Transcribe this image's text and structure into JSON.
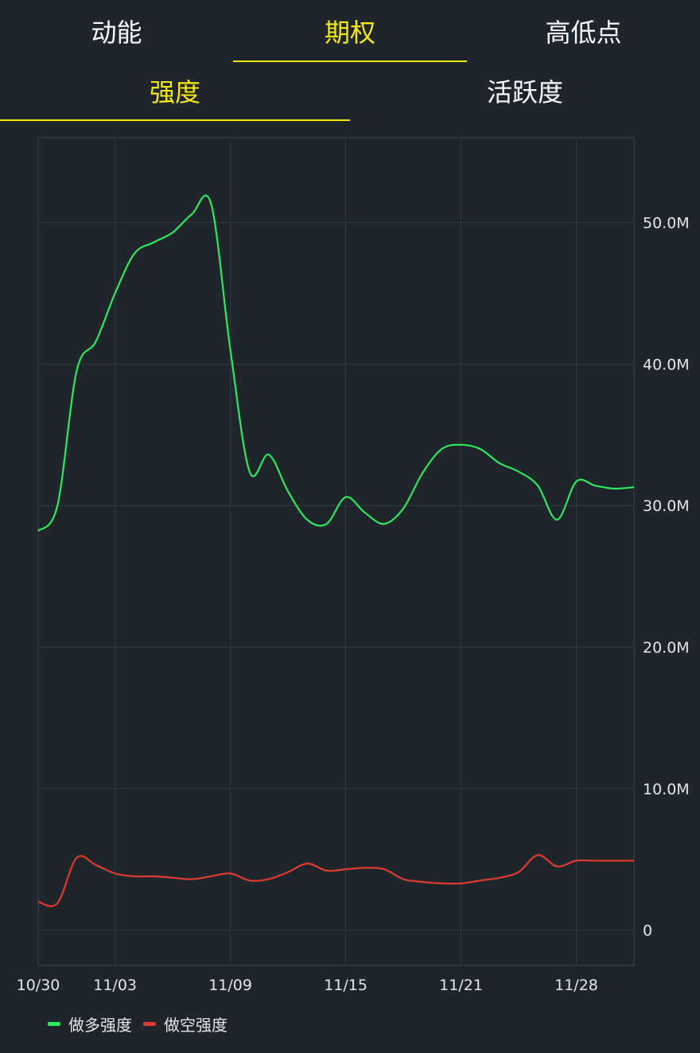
{
  "tabs": [
    {
      "label": "动能",
      "active": false
    },
    {
      "label": "期权",
      "active": true
    },
    {
      "label": "高低点",
      "active": false
    }
  ],
  "subtabs": [
    {
      "label": "强度",
      "active": true
    },
    {
      "label": "活跃度",
      "active": false
    }
  ],
  "colors": {
    "background": "#1e262b",
    "accent": "#f5e90f",
    "long": "#2ee85f",
    "short": "#e03a2e",
    "grid": "#2f3b3f"
  },
  "chart_data": {
    "type": "line",
    "y_unit": "M",
    "ylim": [
      -2.5,
      56
    ],
    "y_ticks": [
      0,
      10,
      20,
      30,
      40,
      50
    ],
    "y_tick_labels": [
      "0",
      "10.0M",
      "20.0M",
      "30.0M",
      "40.0M",
      "50.0M"
    ],
    "x_tick_labels": [
      "10/30",
      "11/03",
      "11/09",
      "11/15",
      "11/21",
      "11/28"
    ],
    "grid": true,
    "legend_position": "bottom-left",
    "x": [
      "10/30",
      "10/31",
      "11/01",
      "11/02",
      "11/03",
      "11/04",
      "11/05",
      "11/06",
      "11/07",
      "11/08",
      "11/09",
      "11/10",
      "11/11",
      "11/12",
      "11/13",
      "11/14",
      "11/15",
      "11/16",
      "11/17",
      "11/18",
      "11/19",
      "11/20",
      "11/21",
      "11/22",
      "11/23",
      "11/24",
      "11/26",
      "11/27",
      "11/28",
      "11/29",
      "11/30",
      "12/01"
    ],
    "series": [
      {
        "name": "做多强度",
        "color": "#2ee85f",
        "values": [
          28.2,
          30.0,
          39.5,
          41.6,
          45.0,
          47.8,
          48.6,
          49.3,
          50.6,
          51.3,
          41.0,
          32.4,
          33.6,
          31.0,
          29.0,
          28.7,
          30.6,
          29.5,
          28.7,
          29.8,
          32.3,
          34.0,
          34.3,
          34.0,
          33.0,
          32.4,
          31.4,
          29.0,
          31.7,
          31.4,
          31.2,
          31.3
        ],
        "values_note": ""
      },
      {
        "name": "做空强度",
        "color": "#e03a2e",
        "values": [
          2.0,
          1.9,
          5.1,
          4.6,
          4.0,
          3.8,
          3.8,
          3.7,
          3.6,
          3.8,
          4.0,
          3.5,
          3.6,
          4.1,
          4.7,
          4.2,
          4.3,
          4.4,
          4.3,
          3.6,
          3.4,
          3.3,
          3.3,
          3.5,
          3.7,
          4.1,
          5.3,
          4.5,
          4.9,
          4.9,
          4.9,
          4.9
        ]
      }
    ]
  },
  "legend": [
    {
      "label": "做多强度",
      "color": "#2ee85f"
    },
    {
      "label": "做空强度",
      "color": "#e03a2e"
    }
  ]
}
